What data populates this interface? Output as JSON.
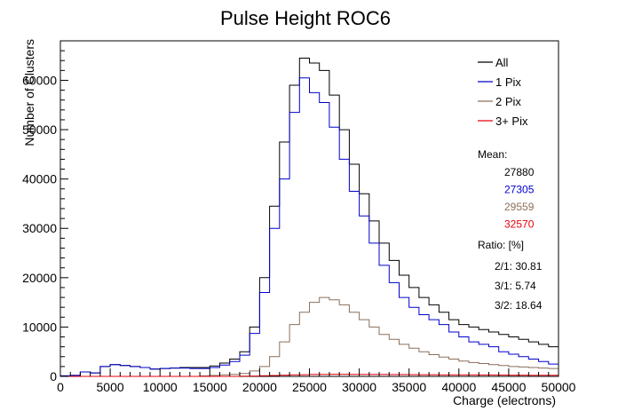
{
  "chart_data": {
    "type": "line",
    "subtype": "step-histogram",
    "title": "Pulse Height ROC6",
    "xlabel": "Charge (electrons)",
    "ylabel": "Number of Clusters",
    "xlim": [
      0,
      50000
    ],
    "ylim": [
      0,
      68000
    ],
    "bin_width": 1000,
    "x_ticks": [
      0,
      5000,
      10000,
      15000,
      20000,
      25000,
      30000,
      35000,
      40000,
      45000,
      50000
    ],
    "x_tick_labels": [
      "0",
      "5000",
      "10000",
      "15000",
      "20000",
      "25000",
      "30000",
      "35000",
      "40000",
      "45000",
      "50000"
    ],
    "y_ticks": [
      0,
      10000,
      20000,
      30000,
      40000,
      50000,
      60000
    ],
    "y_tick_labels": [
      "0",
      "10000",
      "20000",
      "30000",
      "40000",
      "50000",
      "60000"
    ],
    "grid": false,
    "legend_position": "top-right",
    "series": [
      {
        "name": "All",
        "color": "#000000",
        "values": [
          100,
          200,
          900,
          700,
          2000,
          2400,
          2200,
          2000,
          1800,
          1500,
          1600,
          1700,
          1800,
          1800,
          1800,
          2100,
          2700,
          3500,
          5000,
          10000,
          20000,
          34500,
          47500,
          59000,
          64500,
          63500,
          62000,
          57000,
          50000,
          43000,
          37000,
          31500,
          27000,
          23500,
          20500,
          18000,
          16000,
          14500,
          13000,
          11500,
          10500,
          10000,
          9500,
          9000,
          8500,
          8000,
          7500,
          7000,
          6500,
          6000
        ]
      },
      {
        "name": "1 Pix",
        "color": "#0000cc",
        "values": [
          100,
          200,
          900,
          700,
          2000,
          2400,
          2200,
          2000,
          1800,
          1500,
          1600,
          1700,
          1700,
          1600,
          1600,
          1800,
          2300,
          3000,
          4300,
          8700,
          17000,
          30000,
          40000,
          53500,
          60500,
          57500,
          55500,
          50500,
          44000,
          37500,
          32500,
          27000,
          22500,
          19000,
          16000,
          14000,
          12500,
          11500,
          10500,
          9000,
          8000,
          7000,
          6500,
          6000,
          5000,
          4500,
          4000,
          3500,
          3000,
          2500
        ]
      },
      {
        "name": "2 Pix",
        "color": "#8b6f5b",
        "values": [
          0,
          0,
          0,
          0,
          0,
          0,
          0,
          0,
          0,
          0,
          0,
          0,
          0,
          0,
          100,
          200,
          300,
          400,
          600,
          1100,
          2000,
          4000,
          7000,
          10500,
          13000,
          15000,
          16000,
          15500,
          14500,
          13000,
          11500,
          10000,
          8500,
          7500,
          6500,
          5700,
          5000,
          4400,
          3900,
          3500,
          3100,
          2800,
          2600,
          2400,
          2200,
          2000,
          1900,
          1800,
          1700,
          1600
        ]
      },
      {
        "name": "3+ Pix",
        "color": "#e8000b",
        "values": [
          0,
          0,
          0,
          0,
          0,
          0,
          0,
          0,
          0,
          0,
          0,
          0,
          0,
          0,
          0,
          0,
          0,
          0,
          50,
          80,
          120,
          180,
          250,
          300,
          350,
          400,
          420,
          430,
          430,
          420,
          410,
          400,
          390,
          380,
          370,
          360,
          350,
          340,
          330,
          320,
          310,
          300,
          290,
          280,
          270,
          260,
          250,
          240,
          230,
          220
        ]
      }
    ],
    "stats": {
      "mean_label": "Mean:",
      "means": [
        {
          "value": "27880",
          "color": "#000000"
        },
        {
          "value": "27305",
          "color": "#0000cc"
        },
        {
          "value": "29559",
          "color": "#8b6f5b"
        },
        {
          "value": "32570",
          "color": "#e8000b"
        }
      ],
      "ratio_label": "Ratio: [%]",
      "ratios": [
        "2/1: 30.81",
        "3/1: 5.74",
        "3/2: 18.64"
      ]
    }
  }
}
